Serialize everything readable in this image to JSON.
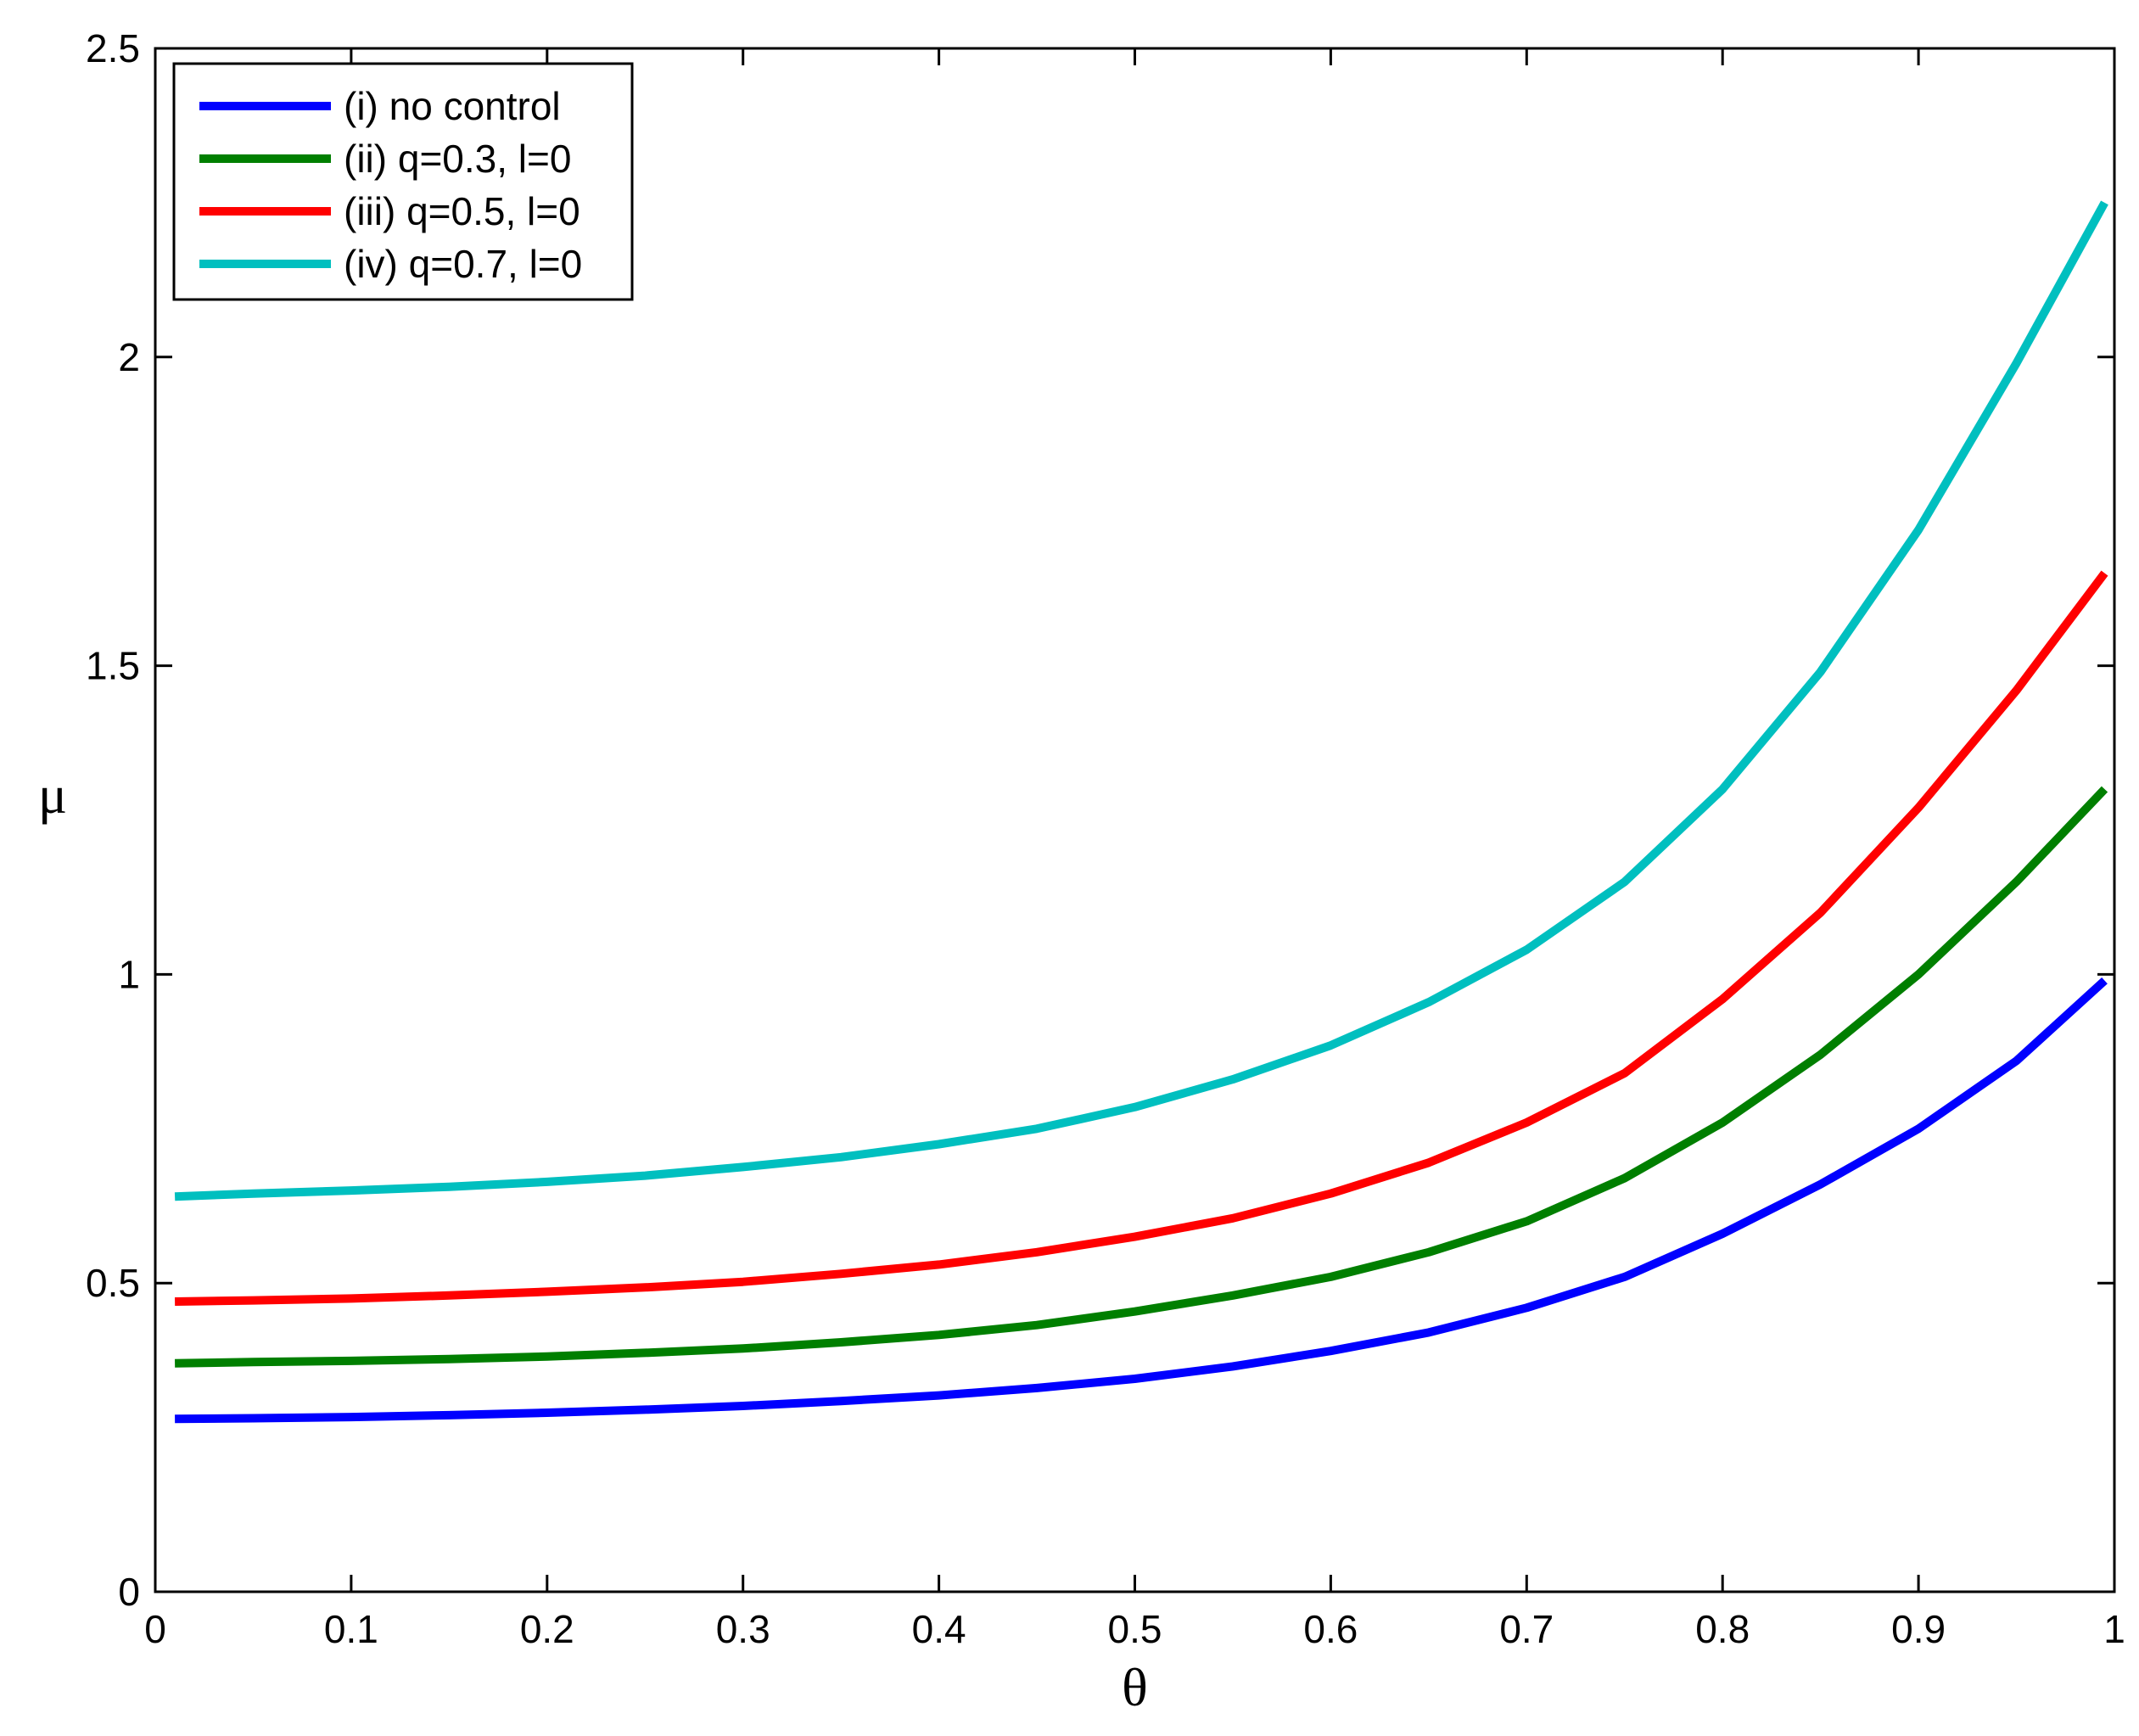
{
  "chart_data": {
    "type": "line",
    "title": "",
    "xlabel": "θ",
    "ylabel": "μ",
    "xlim": [
      0,
      1
    ],
    "ylim": [
      0,
      2.5
    ],
    "xticks": [
      "0",
      "0.1",
      "0.2",
      "0.3",
      "0.4",
      "0.5",
      "0.6",
      "0.7",
      "0.8",
      "0.9",
      "1"
    ],
    "yticks": [
      "0",
      "0.5",
      "1",
      "1.5",
      "2",
      "2.5"
    ],
    "grid": false,
    "legend_position": "top-left",
    "x": [
      0.01,
      0.05,
      0.1,
      0.15,
      0.2,
      0.25,
      0.3,
      0.35,
      0.4,
      0.45,
      0.5,
      0.55,
      0.6,
      0.65,
      0.7,
      0.75,
      0.8,
      0.85,
      0.9,
      0.95,
      0.995
    ],
    "series": [
      {
        "name": "(i) no control",
        "color": "#0000ff",
        "values": [
          0.28,
          0.281,
          0.283,
          0.286,
          0.29,
          0.295,
          0.301,
          0.309,
          0.318,
          0.33,
          0.345,
          0.365,
          0.39,
          0.42,
          0.46,
          0.51,
          0.58,
          0.66,
          0.75,
          0.86,
          0.99
        ]
      },
      {
        "name": "(ii) q=0.3, l=0",
        "color": "#007f00",
        "values": [
          0.37,
          0.372,
          0.374,
          0.377,
          0.381,
          0.387,
          0.394,
          0.404,
          0.416,
          0.432,
          0.454,
          0.48,
          0.51,
          0.55,
          0.6,
          0.67,
          0.76,
          0.87,
          1.0,
          1.15,
          1.3
        ]
      },
      {
        "name": "(iii) q=0.5, l=0",
        "color": "#ff0000",
        "values": [
          0.47,
          0.472,
          0.475,
          0.48,
          0.486,
          0.493,
          0.502,
          0.515,
          0.53,
          0.55,
          0.575,
          0.605,
          0.645,
          0.695,
          0.76,
          0.84,
          0.96,
          1.1,
          1.27,
          1.46,
          1.65
        ]
      },
      {
        "name": "(iv) q=0.7, l=0",
        "color": "#00bfbf",
        "values": [
          0.64,
          0.645,
          0.65,
          0.656,
          0.664,
          0.674,
          0.688,
          0.704,
          0.725,
          0.75,
          0.785,
          0.83,
          0.885,
          0.955,
          1.04,
          1.15,
          1.3,
          1.49,
          1.72,
          1.99,
          2.25
        ]
      }
    ]
  }
}
